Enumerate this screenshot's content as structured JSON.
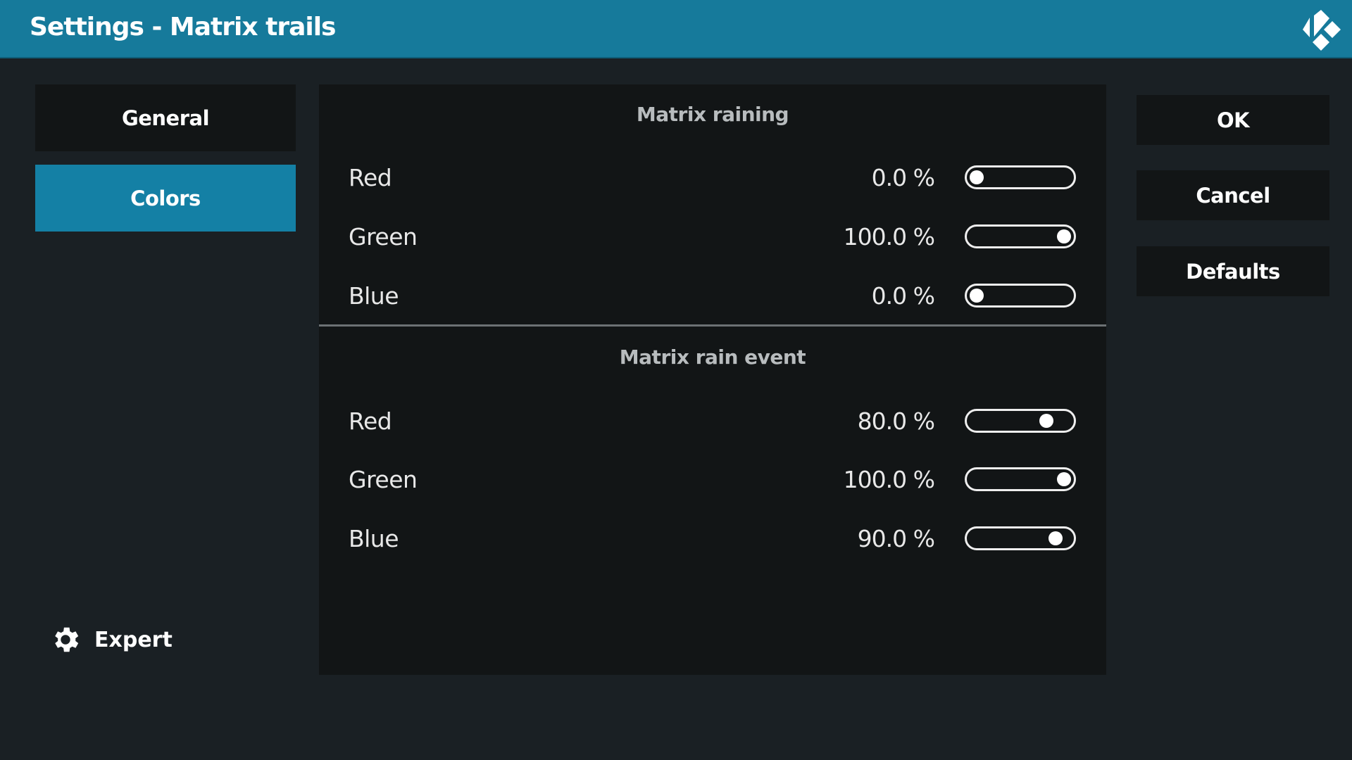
{
  "header": {
    "title": "Settings - Matrix trails",
    "logo": "kodi-logo"
  },
  "nav": {
    "items": [
      {
        "label": "General",
        "active": false
      },
      {
        "label": "Colors",
        "active": true
      }
    ]
  },
  "sections": [
    {
      "title": "Matrix raining",
      "rows": [
        {
          "label": "Red",
          "value": "0.0 %",
          "level": 0
        },
        {
          "label": "Green",
          "value": "100.0 %",
          "level": 100
        },
        {
          "label": "Blue",
          "value": "0.0 %",
          "level": 0
        }
      ]
    },
    {
      "title": "Matrix rain event",
      "rows": [
        {
          "label": "Red",
          "value": "80.0 %",
          "level": 80
        },
        {
          "label": "Green",
          "value": "100.0 %",
          "level": 100
        },
        {
          "label": "Blue",
          "value": "90.0 %",
          "level": 90
        }
      ]
    }
  ],
  "buttons": {
    "ok": "OK",
    "cancel": "Cancel",
    "defaults": "Defaults"
  },
  "expert": {
    "label": "Expert",
    "icon": "gear-icon"
  },
  "colors": {
    "header": "#167a9b",
    "active": "#1480a5",
    "background": "#1a2024",
    "panel": "#121516"
  }
}
